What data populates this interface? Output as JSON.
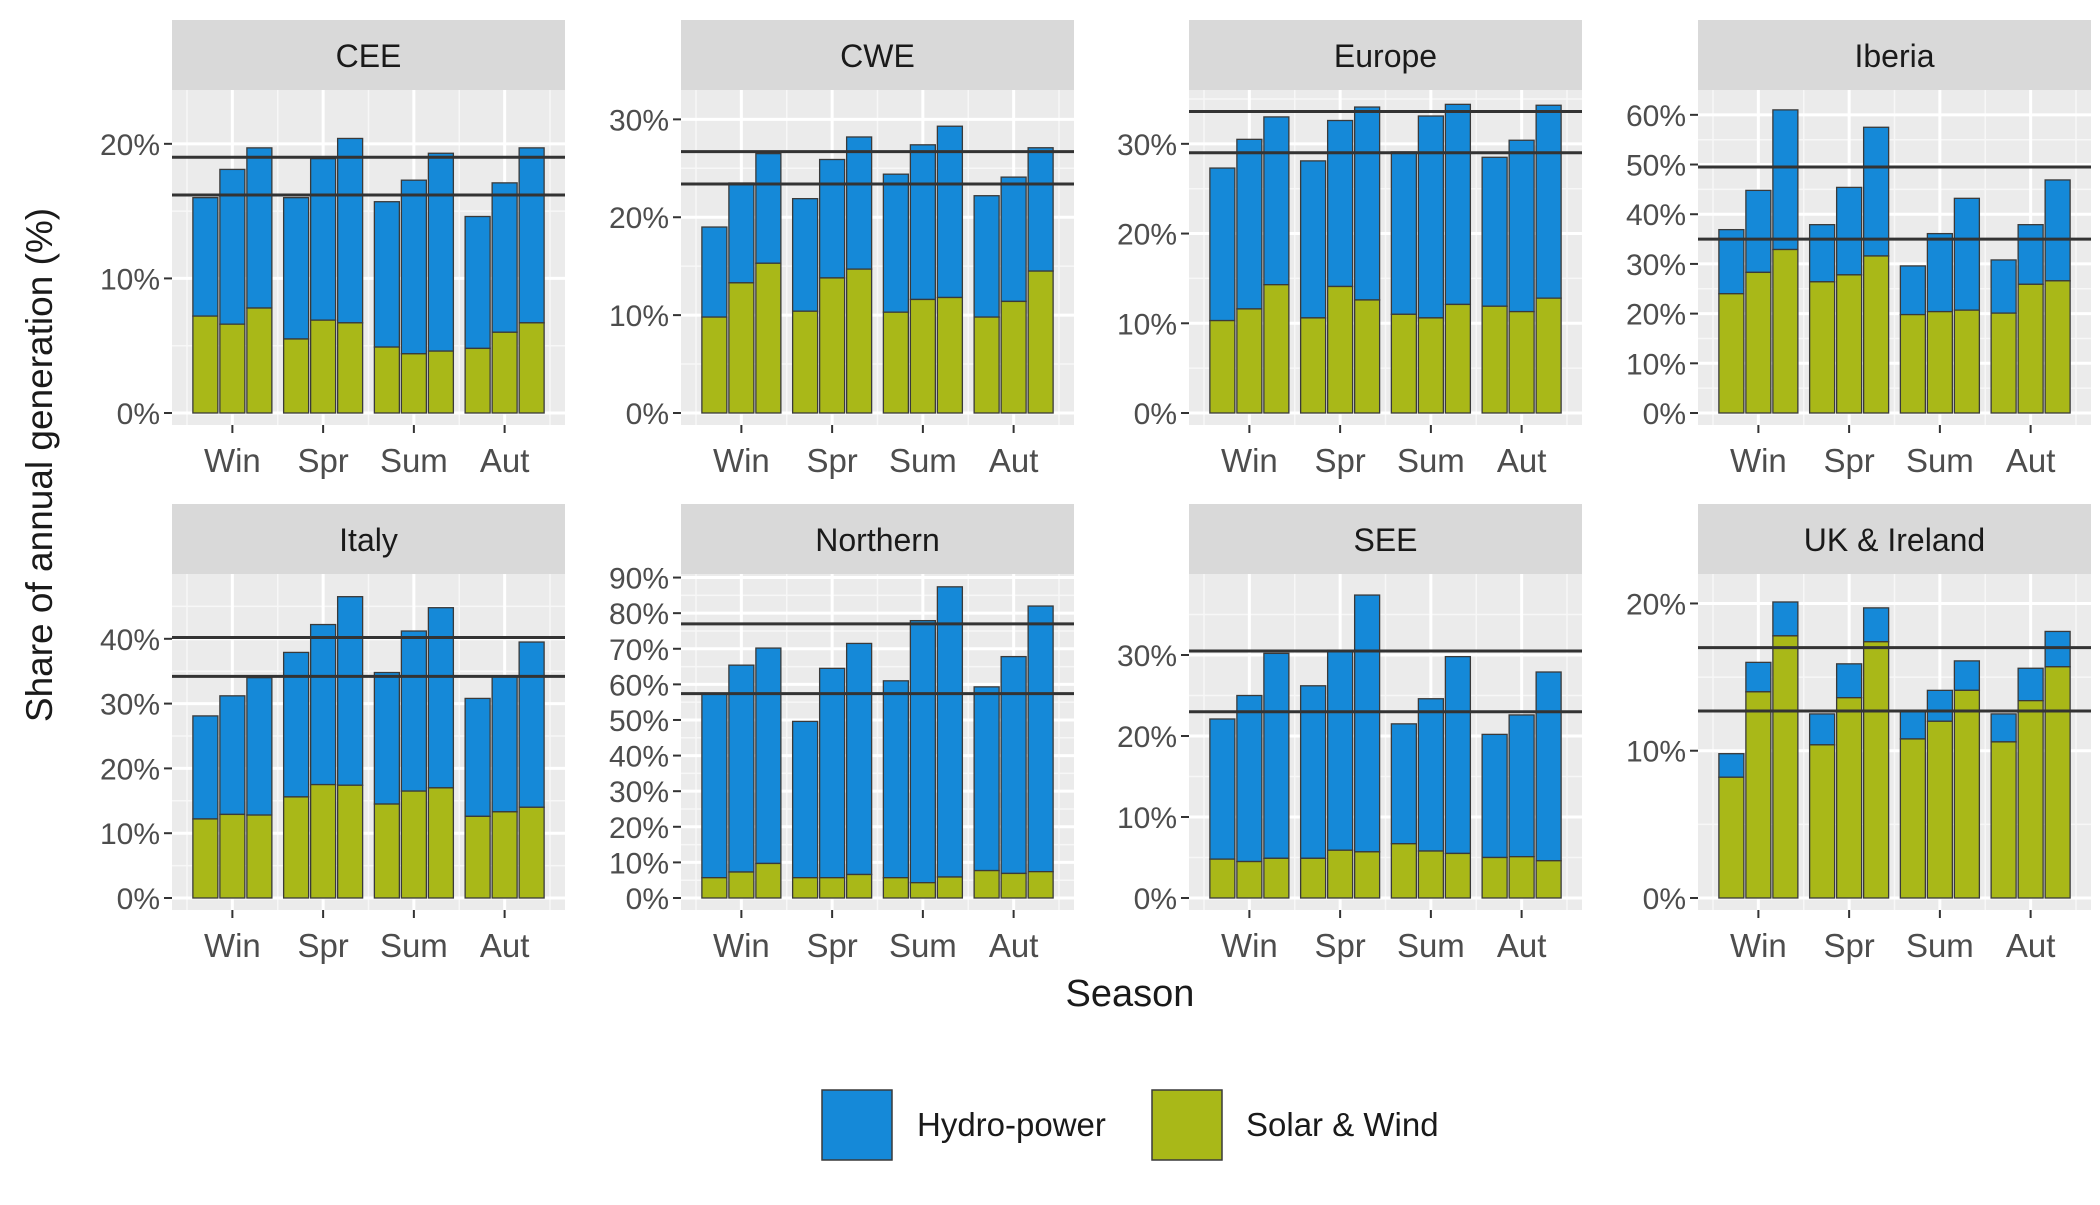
{
  "chart_data": {
    "type": "bar",
    "stacked": true,
    "ylabel": "Share of annual generation (%)",
    "xlabel": "Season",
    "categories": [
      "Win",
      "Spr",
      "Sum",
      "Aut"
    ],
    "bars_per_category": 3,
    "colors": {
      "hydro": "#1589d8",
      "solar_wind": "#a9b818",
      "bar_outline": "#3a3a3a",
      "panel_bg": "#ebebeb",
      "strip_bg": "#d9d9d9",
      "ref_line": "#333333"
    },
    "legend": [
      {
        "key": "hydro",
        "label": "Hydro-power"
      },
      {
        "key": "solar_wind",
        "label": "Solar & Wind"
      }
    ],
    "legend_position": "bottom",
    "panels": [
      {
        "title": "CEE",
        "ylim": [
          0,
          24
        ],
        "yticks": [
          0,
          10,
          20
        ],
        "ytick_labels": [
          "0%",
          "10%",
          "20%"
        ],
        "ref_lines": [
          16.2,
          19.0
        ],
        "solar_wind": [
          7.2,
          6.6,
          7.8,
          5.5,
          6.9,
          6.7,
          4.9,
          4.4,
          4.6,
          4.8,
          6.0,
          6.7
        ],
        "total": [
          16.0,
          18.1,
          19.7,
          16.0,
          18.9,
          20.4,
          15.7,
          17.3,
          19.3,
          14.6,
          17.1,
          19.7
        ]
      },
      {
        "title": "CWE",
        "ylim": [
          0,
          33
        ],
        "yticks": [
          0,
          10,
          20,
          30
        ],
        "ytick_labels": [
          "0%",
          "10%",
          "20%",
          "30%"
        ],
        "ref_lines": [
          23.4,
          26.7
        ],
        "solar_wind": [
          9.8,
          13.3,
          15.3,
          10.4,
          13.8,
          14.7,
          10.3,
          11.6,
          11.8,
          9.8,
          11.4,
          14.5
        ],
        "total": [
          19.0,
          23.5,
          26.5,
          21.9,
          25.9,
          28.2,
          24.4,
          27.4,
          29.3,
          22.2,
          24.1,
          27.1
        ]
      },
      {
        "title": "Europe",
        "ylim": [
          0,
          36
        ],
        "yticks": [
          0,
          10,
          20,
          30
        ],
        "ytick_labels": [
          "0%",
          "10%",
          "20%",
          "30%"
        ],
        "ref_lines": [
          29.0,
          33.6
        ],
        "solar_wind": [
          10.3,
          11.6,
          14.3,
          10.6,
          14.1,
          12.6,
          11.0,
          10.6,
          12.1,
          11.9,
          11.3,
          12.8
        ],
        "total": [
          27.3,
          30.5,
          33.0,
          28.1,
          32.6,
          34.1,
          29.1,
          33.1,
          34.4,
          28.5,
          30.4,
          34.3
        ]
      },
      {
        "title": "Iberia",
        "ylim": [
          0,
          65
        ],
        "yticks": [
          0,
          10,
          20,
          30,
          40,
          50,
          60
        ],
        "ytick_labels": [
          "0%",
          "10%",
          "20%",
          "30%",
          "40%",
          "50%",
          "60%"
        ],
        "ref_lines": [
          35.0,
          49.5
        ],
        "solar_wind": [
          24.0,
          28.3,
          32.9,
          26.4,
          27.8,
          31.6,
          19.8,
          20.4,
          20.7,
          20.1,
          25.9,
          26.6
        ],
        "total": [
          36.9,
          44.8,
          61.0,
          37.9,
          45.4,
          57.5,
          29.6,
          36.1,
          43.2,
          30.8,
          37.9,
          46.9
        ]
      },
      {
        "title": "Italy",
        "ylim": [
          0,
          50
        ],
        "yticks": [
          0,
          10,
          20,
          30,
          40
        ],
        "ytick_labels": [
          "0%",
          "10%",
          "20%",
          "30%",
          "40%"
        ],
        "ref_lines": [
          34.2,
          40.2
        ],
        "solar_wind": [
          12.2,
          12.9,
          12.8,
          15.6,
          17.5,
          17.4,
          14.5,
          16.5,
          17.0,
          12.6,
          13.3,
          14.0
        ],
        "total": [
          28.1,
          31.2,
          34.0,
          37.9,
          42.2,
          46.5,
          34.8,
          41.2,
          44.8,
          30.8,
          34.2,
          39.5
        ]
      },
      {
        "title": "Northern",
        "ylim": [
          0,
          91
        ],
        "yticks": [
          0,
          10,
          20,
          30,
          40,
          50,
          60,
          70,
          80,
          90
        ],
        "ytick_labels": [
          "0%",
          "10%",
          "20%",
          "30%",
          "40%",
          "50%",
          "60%",
          "70%",
          "80%",
          "90%"
        ],
        "ref_lines": [
          57.4,
          77.0
        ],
        "solar_wind": [
          5.7,
          7.3,
          9.7,
          5.7,
          5.7,
          6.6,
          5.7,
          4.3,
          5.9,
          7.7,
          6.9,
          7.4
        ],
        "total": [
          57.2,
          65.4,
          70.2,
          49.6,
          64.5,
          71.5,
          61.0,
          77.9,
          87.4,
          59.3,
          67.8,
          82.0
        ]
      },
      {
        "title": "SEE",
        "ylim": [
          0,
          40
        ],
        "yticks": [
          0,
          10,
          20,
          30
        ],
        "ytick_labels": [
          "0%",
          "10%",
          "20%",
          "30%"
        ],
        "ref_lines": [
          23.0,
          30.5
        ],
        "solar_wind": [
          4.8,
          4.5,
          4.9,
          4.9,
          5.9,
          5.7,
          6.7,
          5.8,
          5.5,
          5.0,
          5.1,
          4.6
        ],
        "total": [
          22.1,
          25.0,
          30.2,
          26.2,
          30.6,
          37.4,
          21.5,
          24.6,
          29.8,
          20.2,
          22.6,
          27.9
        ]
      },
      {
        "title": "UK & Ireland",
        "ylim": [
          0,
          22
        ],
        "yticks": [
          0,
          10,
          20
        ],
        "ytick_labels": [
          "0%",
          "10%",
          "20%"
        ],
        "ref_lines": [
          12.7,
          17.0
        ],
        "solar_wind": [
          8.2,
          14.0,
          17.8,
          10.4,
          13.6,
          17.4,
          10.8,
          12.0,
          14.1,
          10.6,
          13.4,
          15.7
        ],
        "total": [
          9.8,
          16.0,
          20.1,
          12.5,
          15.9,
          19.7,
          12.7,
          14.1,
          16.1,
          12.5,
          15.6,
          18.1
        ]
      }
    ]
  }
}
